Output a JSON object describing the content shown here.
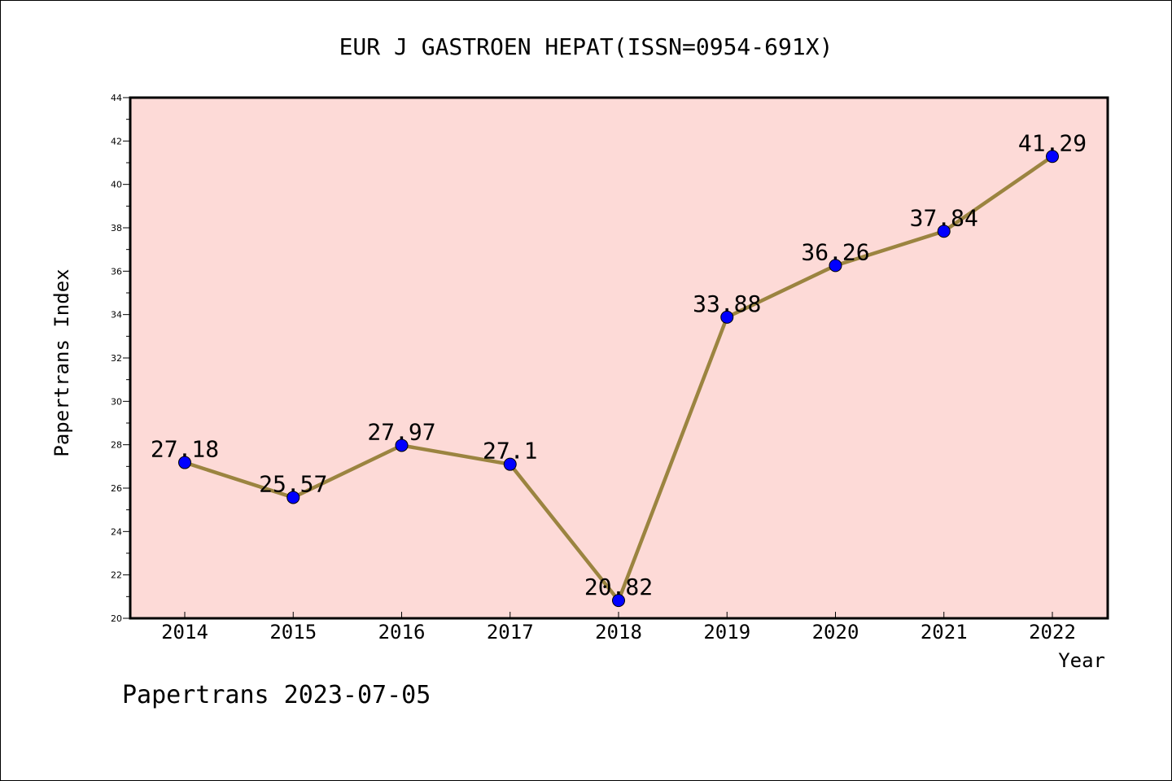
{
  "chart_data": {
    "type": "line",
    "title": "EUR J GASTROEN HEPAT(ISSN=0954-691X)",
    "xlabel": "Year",
    "ylabel": "Papertrans Index",
    "categories": [
      "2014",
      "2015",
      "2016",
      "2017",
      "2018",
      "2019",
      "2020",
      "2021",
      "2022"
    ],
    "values": [
      27.18,
      25.57,
      27.97,
      27.1,
      20.82,
      33.88,
      36.26,
      37.84,
      41.29
    ],
    "data_labels": [
      "27.18",
      "25.57",
      "27.97",
      "27.1",
      "20.82",
      "33.88",
      "36.26",
      "37.84",
      "41.29"
    ],
    "ylim": [
      20,
      44
    ],
    "yticks": [
      "20",
      "22",
      "24",
      "26",
      "28",
      "30",
      "32",
      "34",
      "36",
      "38",
      "40",
      "42",
      "44"
    ],
    "grid": false,
    "colors": {
      "plot_background": "#fddad7",
      "line": "#9b8440",
      "marker": "#0000ff"
    }
  },
  "footer": "Papertrans 2023-07-05"
}
